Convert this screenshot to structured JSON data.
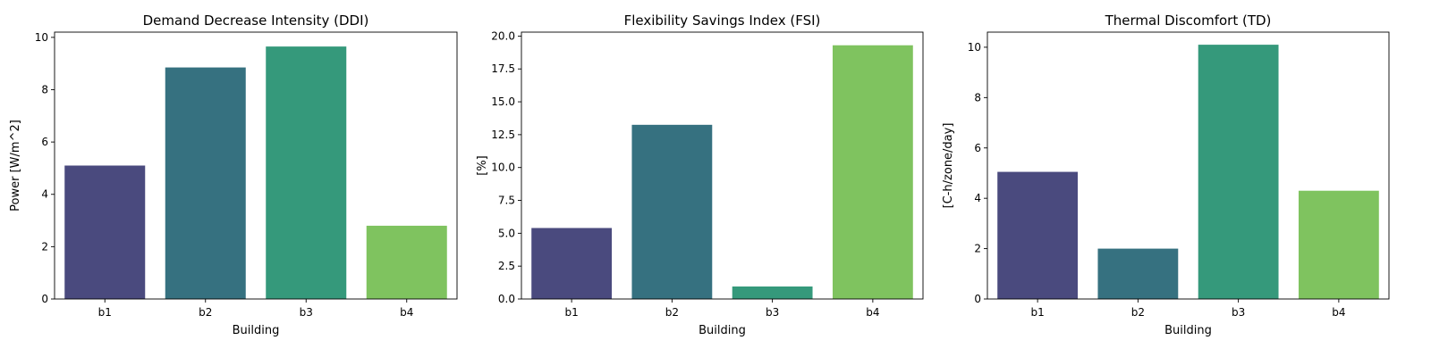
{
  "chart_data": [
    {
      "type": "bar",
      "title": "Demand Decrease Intensity (DDI)",
      "xlabel": "Building",
      "ylabel": "Power [W/m^2]",
      "categories": [
        "b1",
        "b2",
        "b3",
        "b4"
      ],
      "values": [
        5.1,
        8.85,
        9.65,
        2.8
      ],
      "ylim": [
        0,
        10.2
      ],
      "yticks": [
        0,
        2,
        4,
        6,
        8,
        10
      ],
      "ytick_labels": [
        "0",
        "2",
        "4",
        "6",
        "8",
        "10"
      ],
      "colors": [
        "#4a4a7e",
        "#367180",
        "#35997b",
        "#7fc35f"
      ]
    },
    {
      "type": "bar",
      "title": "Flexibility Savings Index (FSI)",
      "xlabel": "Building",
      "ylabel": "[%]",
      "categories": [
        "b1",
        "b2",
        "b3",
        "b4"
      ],
      "values": [
        5.4,
        13.25,
        0.95,
        19.3
      ],
      "ylim": [
        0,
        20.3
      ],
      "yticks": [
        0,
        2.5,
        5,
        7.5,
        10,
        12.5,
        15,
        17.5,
        20
      ],
      "ytick_labels": [
        "0.0",
        "2.5",
        "5.0",
        "7.5",
        "10.0",
        "12.5",
        "15.0",
        "17.5",
        "20.0"
      ],
      "colors": [
        "#4a4a7e",
        "#367180",
        "#35997b",
        "#7fc35f"
      ]
    },
    {
      "type": "bar",
      "title": "Thermal Discomfort (TD)",
      "xlabel": "Building",
      "ylabel": "[C-h/zone/day]",
      "categories": [
        "b1",
        "b2",
        "b3",
        "b4"
      ],
      "values": [
        5.05,
        2.0,
        10.1,
        4.3
      ],
      "ylim": [
        0,
        10.6
      ],
      "yticks": [
        0,
        2,
        4,
        6,
        8,
        10
      ],
      "ytick_labels": [
        "0",
        "2",
        "4",
        "6",
        "8",
        "10"
      ],
      "colors": [
        "#4a4a7e",
        "#367180",
        "#35997b",
        "#7fc35f"
      ]
    }
  ]
}
